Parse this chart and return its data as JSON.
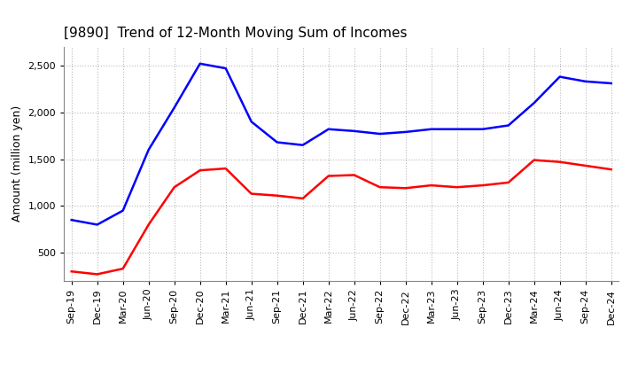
{
  "title": "[9890]  Trend of 12-Month Moving Sum of Incomes",
  "ylabel": "Amount (million yen)",
  "background_color": "#ffffff",
  "grid_color": "#bbbbbb",
  "x_labels": [
    "Sep-19",
    "Dec-19",
    "Mar-20",
    "Jun-20",
    "Sep-20",
    "Dec-20",
    "Mar-21",
    "Jun-21",
    "Sep-21",
    "Dec-21",
    "Mar-22",
    "Jun-22",
    "Sep-22",
    "Dec-22",
    "Mar-23",
    "Jun-23",
    "Sep-23",
    "Dec-23",
    "Mar-24",
    "Jun-24",
    "Sep-24",
    "Dec-24"
  ],
  "ordinary_income": [
    850,
    800,
    950,
    1600,
    2050,
    2520,
    2470,
    1900,
    1680,
    1650,
    1820,
    1800,
    1770,
    1790,
    1820,
    1820,
    1820,
    1860,
    2100,
    2380,
    2330,
    2310
  ],
  "net_income": [
    300,
    270,
    330,
    800,
    1200,
    1380,
    1400,
    1130,
    1110,
    1080,
    1320,
    1330,
    1200,
    1190,
    1220,
    1200,
    1220,
    1250,
    1490,
    1470,
    1430,
    1390
  ],
  "ordinary_color": "#0000ff",
  "net_color": "#ff0000",
  "ylim_min": 200,
  "ylim_max": 2700,
  "yticks": [
    500,
    1000,
    1500,
    2000,
    2500
  ],
  "line_width": 1.8,
  "title_fontsize": 11,
  "axis_label_fontsize": 9,
  "tick_fontsize": 8,
  "legend_fontsize": 9
}
